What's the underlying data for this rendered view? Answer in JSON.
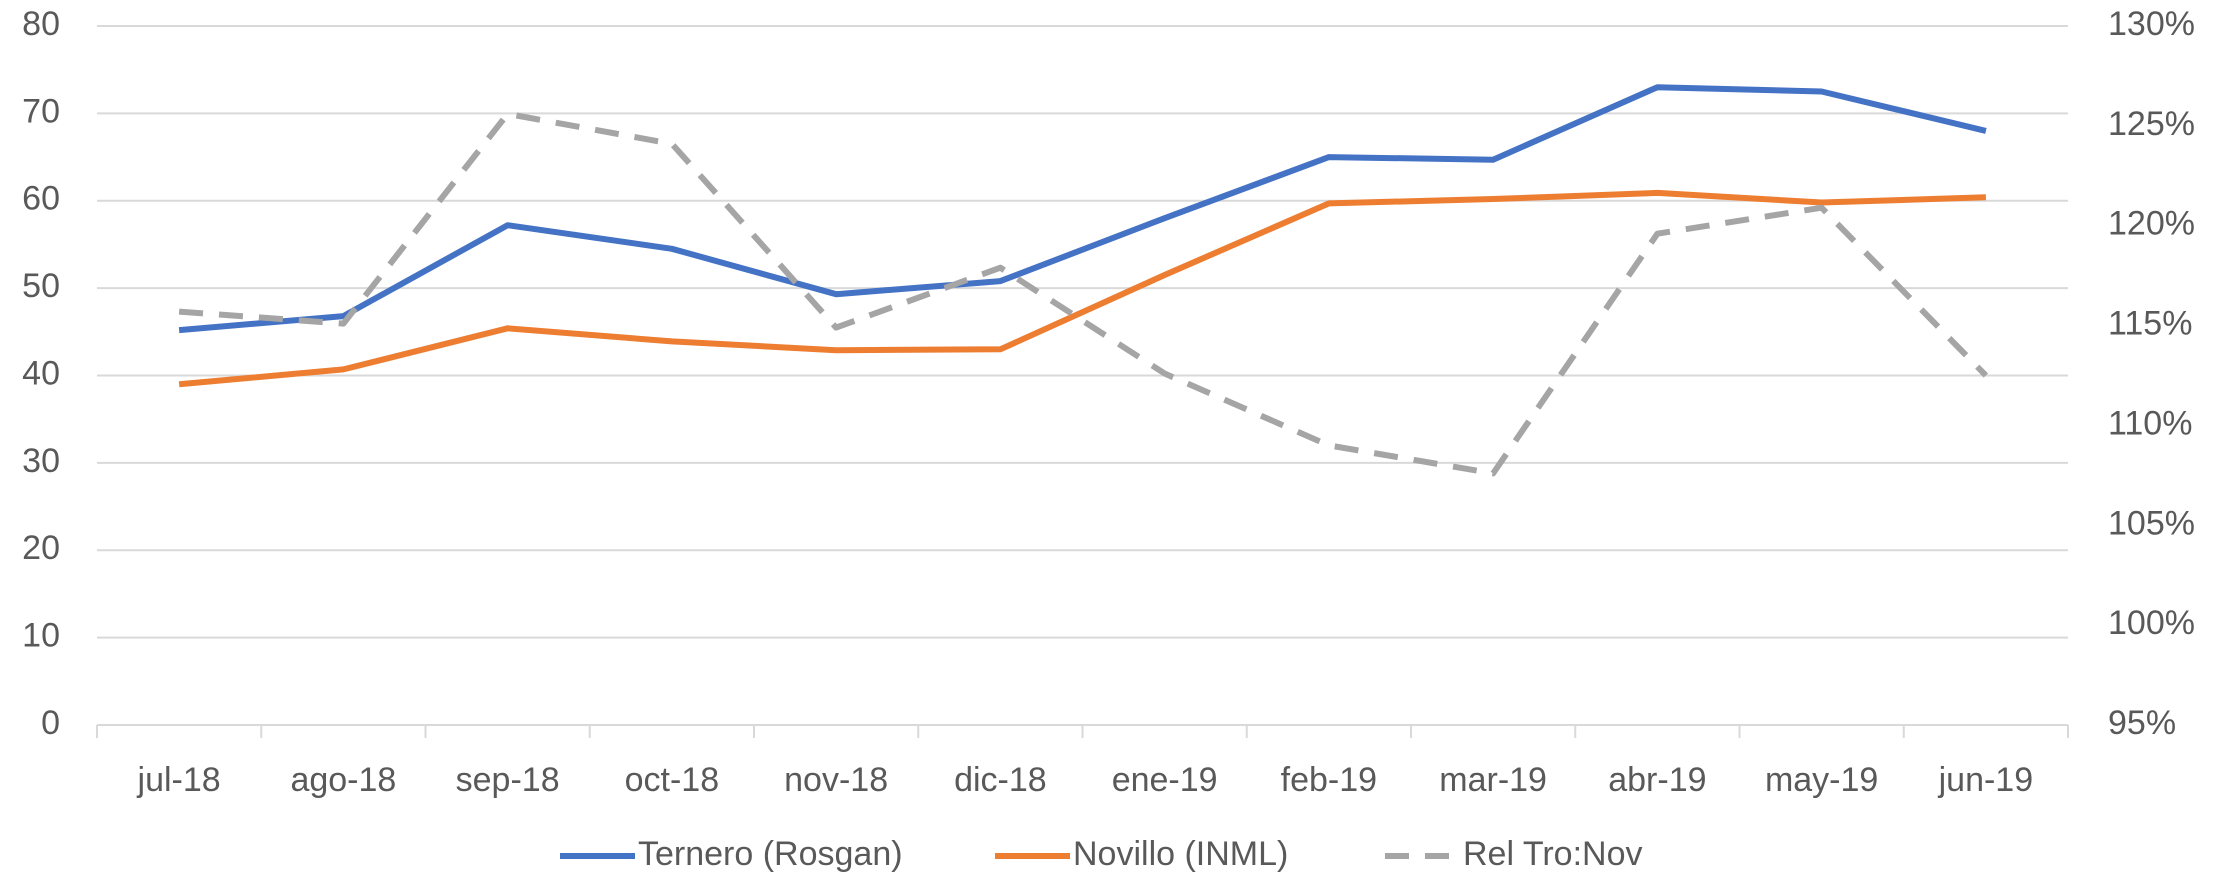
{
  "chart_data": {
    "type": "line",
    "categories": [
      "jul-18",
      "ago-18",
      "sep-18",
      "oct-18",
      "nov-18",
      "dic-18",
      "ene-19",
      "feb-19",
      "mar-19",
      "abr-19",
      "may-19",
      "jun-19"
    ],
    "series": [
      {
        "name": "Ternero (Rosgan)",
        "color": "#4472c4",
        "values": [
          45.2,
          46.8,
          57.2,
          54.5,
          49.3,
          50.8,
          58,
          65,
          64.7,
          73,
          72.5,
          68
        ]
      },
      {
        "name": "Novillo (INML)",
        "color": "#ed7d31",
        "values": [
          39,
          40.7,
          45.4,
          43.9,
          42.9,
          43,
          51.5,
          59.7,
          60.2,
          60.9,
          59.8,
          60.4
        ]
      },
      {
        "name": "Rel Tro:Nov",
        "color": "#a5a5a5",
        "dashed": true,
        "axis": "y2",
        "values": [
          115.7,
          115.1,
          125.6,
          124.1,
          114.9,
          117.9,
          112.6,
          109.0,
          107.6,
          119.6,
          120.9,
          112.5
        ]
      }
    ],
    "ylim": [
      0,
      80
    ],
    "yticks": [
      0,
      10,
      20,
      30,
      40,
      50,
      60,
      70,
      80
    ],
    "y2lim": [
      95,
      130
    ],
    "y2ticks": [
      {
        "value": 95,
        "label": "95%"
      },
      {
        "value": 100,
        "label": "100%"
      },
      {
        "value": 105,
        "label": "105%"
      },
      {
        "value": 110,
        "label": "110%"
      },
      {
        "value": 115,
        "label": "115%"
      },
      {
        "value": 120,
        "label": "120%"
      },
      {
        "value": 125,
        "label": "125%"
      },
      {
        "value": 130,
        "label": "130%"
      }
    ],
    "grid": true,
    "legend": "bottom"
  }
}
